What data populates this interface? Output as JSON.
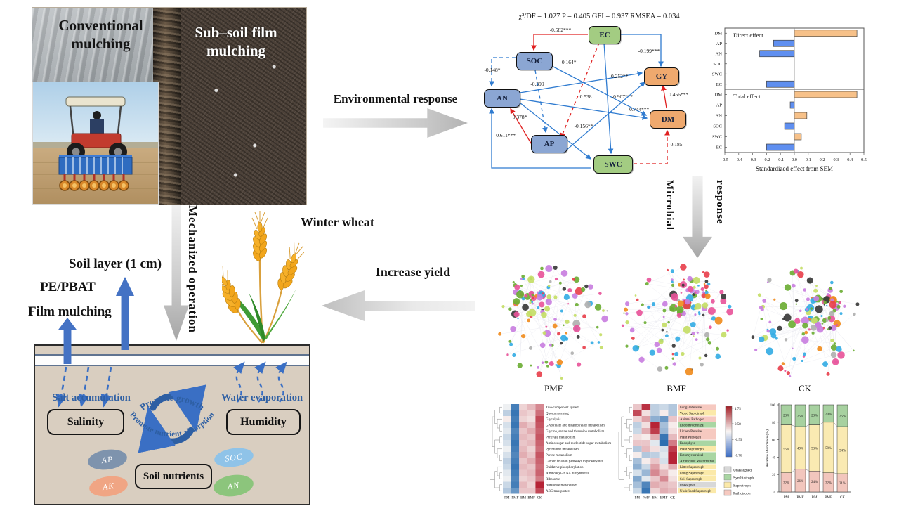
{
  "photo": {
    "label_left": "Conventional mulching",
    "label_right": "Sub–soil film mulching"
  },
  "flow": {
    "environmental_response": "Environmental response",
    "microbial": "Microbial",
    "response": "response",
    "increase_yield": "Increase yield",
    "mechanized_operation": "Mechanized operation",
    "winter_wheat": "Winter wheat"
  },
  "left_labels": {
    "soil_layer": "Soil layer (1 cm)",
    "pe_pbat": "PE/PBAT",
    "film_mulching": "Film mulching"
  },
  "soil_diagram": {
    "salt_accumulation": "Salt accumulation",
    "salinity": "Salinity",
    "water_evaporation": "Water evaporation",
    "humidity": "Humidity",
    "soil_nutrients": "Soil nutrients",
    "promote_growth": "Promote growth",
    "promote_nutrient_absorption": "Promote nutrient absorption",
    "nutrients": [
      {
        "label": "AP",
        "color": "#7e93ad"
      },
      {
        "label": "AK",
        "color": "#f0a584"
      },
      {
        "label": "SOC",
        "color": "#8fc3e8"
      },
      {
        "label": "AN",
        "color": "#8cc57c"
      }
    ]
  },
  "sem": {
    "fit": "χ²/DF = 1.027 P = 0.405 GFI = 0.937 RMSEA = 0.034",
    "nodes": [
      {
        "id": "EC",
        "label": "EC",
        "type": "green"
      },
      {
        "id": "SOC",
        "label": "SOC",
        "type": "blue"
      },
      {
        "id": "AN",
        "label": "AN",
        "type": "blue"
      },
      {
        "id": "AP",
        "label": "AP",
        "type": "blue"
      },
      {
        "id": "SWC",
        "label": "SWC",
        "type": "green"
      },
      {
        "id": "GY",
        "label": "GY",
        "type": "orange"
      },
      {
        "id": "DM",
        "label": "DM",
        "type": "orange"
      }
    ],
    "edges": [
      {
        "from": "EC",
        "to": "SOC",
        "label": "-0.582***",
        "color": "red",
        "style": "solid"
      },
      {
        "from": "EC",
        "to": "GY",
        "label": "-0.199***",
        "color": "blue",
        "style": "solid"
      },
      {
        "from": "SOC",
        "to": "DM",
        "label": "-0.164*",
        "color": "blue",
        "style": "solid"
      },
      {
        "from": "SOC",
        "to": "AN",
        "label": "-0.148*",
        "color": "blue",
        "style": "dashed"
      },
      {
        "from": "SOC",
        "to": "AP",
        "label": "-0.399",
        "color": "blue",
        "style": "dashed"
      },
      {
        "from": "EC",
        "to": "SWC",
        "label": "-0.907***",
        "color": "blue",
        "style": "solid"
      },
      {
        "from": "AN",
        "to": "GY",
        "label": "-0.252**",
        "color": "blue",
        "style": "solid"
      },
      {
        "from": "AN",
        "to": "SWC",
        "label": "0.538",
        "color": "blue",
        "style": "solid"
      },
      {
        "from": "AN",
        "to": "DM",
        "label": "-0.744***",
        "color": "blue",
        "style": "solid"
      },
      {
        "from": "AP",
        "to": "GY",
        "label": "-0.156**",
        "color": "blue",
        "style": "solid"
      },
      {
        "from": "DM",
        "to": "GY",
        "label": "0.456***",
        "color": "red",
        "style": "solid"
      },
      {
        "from": "AP",
        "to": "AN",
        "label": "0.378*",
        "color": "red",
        "style": "solid"
      },
      {
        "from": "SWC",
        "to": "AN",
        "label": "-0.611***",
        "color": "blue",
        "style": "solid"
      },
      {
        "from": "SWC",
        "to": "DM",
        "label": "0.185",
        "color": "red",
        "style": "dashed"
      },
      {
        "from": "EC",
        "to": "AP",
        "label": "",
        "color": "red",
        "style": "dashed"
      }
    ]
  },
  "networks": {
    "items": [
      {
        "label": "PMF"
      },
      {
        "label": "BMF"
      },
      {
        "label": "CK"
      }
    ],
    "dot_colors": [
      "#c97fe0",
      "#35ace4",
      "#6cae35",
      "#e8559a",
      "#f08c1e",
      "#e8414d",
      "#3a3a3a",
      "#b0b0b0",
      "#c4dd66"
    ]
  },
  "chart_data": [
    {
      "type": "bar",
      "orientation": "horizontal",
      "panels": [
        {
          "label": "Direct effect",
          "categories": [
            "DM",
            "AP",
            "AN",
            "SOC",
            "SWC",
            "EC"
          ],
          "values": [
            0.45,
            -0.15,
            -0.25,
            0,
            0,
            -0.2
          ]
        },
        {
          "label": "Total effect",
          "categories": [
            "DM",
            "AP",
            "AN",
            "SOC",
            "SWC",
            "EC"
          ],
          "values": [
            0.45,
            -0.03,
            0.09,
            -0.07,
            0.05,
            -0.2
          ]
        }
      ],
      "xlabel": "Standardized effect from SEM",
      "xlim": [
        -0.5,
        0.5
      ],
      "xticks": [
        -0.5,
        -0.4,
        -0.3,
        -0.2,
        -0.1,
        0.0,
        0.1,
        0.2,
        0.3,
        0.4,
        0.5
      ],
      "positive_color": "#f7c189",
      "negative_color": "#5f8ff0"
    },
    {
      "type": "heatmap",
      "columns": [
        "PM",
        "PMF",
        "BM",
        "BMF",
        "CK"
      ],
      "rows": [
        "Two-component system",
        "Quorum sensing",
        "Glycolysis",
        "Glyoxylate and dicarboxylate metabolism",
        "Glycine, serine and threonine metabolism",
        "Pyruvate metabolism",
        "Amino sugar and nucleotide sugar metabolism",
        "Pyrimidine metabolism",
        "Purine metabolism",
        "Carbon fixation pathways in prokaryotes",
        "Oxidative phosphorylation",
        "Aminoacyl-tRNA biosynthesis",
        "Ribosome",
        "Butanoate metabolism",
        "ABC transporters"
      ],
      "values": [
        [
          -0.1,
          -1.5,
          0.3,
          0.5,
          0.9
        ],
        [
          -0.5,
          -1.6,
          0.4,
          0.3,
          1.1
        ],
        [
          0.1,
          -1.5,
          0.3,
          0.2,
          1.4
        ],
        [
          -0.3,
          -1.6,
          0.6,
          0.4,
          1.3
        ],
        [
          -0.2,
          -1.4,
          0.4,
          0.6,
          1.2
        ],
        [
          -0.4,
          -1.5,
          0.5,
          0.4,
          1.3
        ],
        [
          -0.3,
          -1.6,
          0.4,
          0.5,
          1.2
        ],
        [
          -0.1,
          -1.5,
          0.5,
          0.3,
          1.1
        ],
        [
          -0.3,
          -1.4,
          0.6,
          0.4,
          1.3
        ],
        [
          -0.5,
          -1.5,
          0.4,
          0.6,
          1.2
        ],
        [
          -0.4,
          -1.6,
          0.5,
          0.4,
          1.1
        ],
        [
          -0.2,
          -1.5,
          0.4,
          0.5,
          1.2
        ],
        [
          -0.1,
          -1.4,
          0.3,
          0.4,
          1.0
        ],
        [
          -0.4,
          -1.5,
          0.5,
          0.3,
          1.7
        ],
        [
          -0.6,
          -1.2,
          0.4,
          0.4,
          1.4
        ]
      ]
    },
    {
      "type": "heatmap",
      "columns": [
        "PM",
        "PMF",
        "BM",
        "BMF",
        "CK"
      ],
      "rows": [
        {
          "label": "Fungal Parasite",
          "group": "Pathotroph"
        },
        {
          "label": "Wood Saprotroph",
          "group": "Saprotroph"
        },
        {
          "label": "Animal Pathogen",
          "group": "Pathotroph"
        },
        {
          "label": "Endomycorrhizal",
          "group": "Symbiotroph"
        },
        {
          "label": "Lichen Parasite",
          "group": "Pathotroph"
        },
        {
          "label": "Plant Pathogen",
          "group": "Pathotroph"
        },
        {
          "label": "Endophyte",
          "group": "Symbiotroph"
        },
        {
          "label": "Plant Saprotroph",
          "group": "Saprotroph"
        },
        {
          "label": "Ectomycorrhizal",
          "group": "Symbiotroph"
        },
        {
          "label": "Arbuscular Mycorrhizal",
          "group": "Symbiotroph"
        },
        {
          "label": "Litter Saprotroph",
          "group": "Saprotroph"
        },
        {
          "label": "Dung Saprotroph",
          "group": "Saprotroph"
        },
        {
          "label": "Soil Saprotroph",
          "group": "Saprotroph"
        },
        {
          "label": "unassigned",
          "group": "Unassigned"
        },
        {
          "label": "Undefined Saprotroph",
          "group": "Saprotroph"
        }
      ],
      "values": [
        [
          0.4,
          1.6,
          -0.5,
          -0.4,
          -0.6
        ],
        [
          1.4,
          0.2,
          -0.5,
          0.1,
          -0.6
        ],
        [
          0.3,
          0.7,
          -0.9,
          -1.2,
          0.4
        ],
        [
          -0.5,
          0.2,
          1.7,
          -0.7,
          0.1
        ],
        [
          -0.4,
          0.6,
          1.5,
          -0.8,
          0.2
        ],
        [
          0.2,
          0.1,
          0.6,
          -1.6,
          0.5
        ],
        [
          0.4,
          0.4,
          -0.2,
          -1.7,
          1.0
        ],
        [
          -0.6,
          0.5,
          0.2,
          -0.3,
          1.5
        ],
        [
          0.1,
          -0.6,
          -0.5,
          -0.2,
          1.7
        ],
        [
          -0.7,
          0.1,
          0.4,
          -0.3,
          1.7
        ],
        [
          -0.9,
          -0.4,
          0.7,
          0.2,
          0.6
        ],
        [
          -0.3,
          -0.8,
          0.9,
          0.5,
          0.1
        ],
        [
          -1.0,
          -0.2,
          0.4,
          0.9,
          0.2
        ],
        [
          -0.7,
          -1.4,
          0.6,
          0.5,
          0.4
        ],
        [
          -0.4,
          -1.6,
          0.3,
          0.6,
          0.5
        ]
      ],
      "colorbar_ticks": [
        1.75,
        0.58,
        -0.59,
        -1.76
      ],
      "legend": [
        {
          "label": "Unassigned",
          "color": "#d8d8d8"
        },
        {
          "label": "Symbiotroph",
          "color": "#a9d6a3"
        },
        {
          "label": "Saprotroph",
          "color": "#fbe9a9"
        },
        {
          "label": "Pathotroph",
          "color": "#f6c9c0"
        }
      ]
    },
    {
      "type": "bar",
      "subtype": "stacked",
      "categories": [
        "PM",
        "PMF",
        "BM",
        "BMF",
        "CK"
      ],
      "series": [
        {
          "name": "Pathotroph",
          "color": "#f2c6bd",
          "values": [
            22,
            26,
            24,
            22,
            21
          ]
        },
        {
          "name": "Saprotroph",
          "color": "#faeab2",
          "values": [
            55,
            49,
            53,
            58,
            54
          ]
        },
        {
          "name": "Symbiotroph",
          "color": "#a7d1a0",
          "values": [
            23,
            25,
            23,
            20,
            25
          ]
        }
      ],
      "ylabel": "Relative abundance (%)",
      "ylim": [
        0,
        100
      ],
      "yticks": [
        0,
        20,
        40,
        60,
        80,
        100
      ]
    }
  ]
}
